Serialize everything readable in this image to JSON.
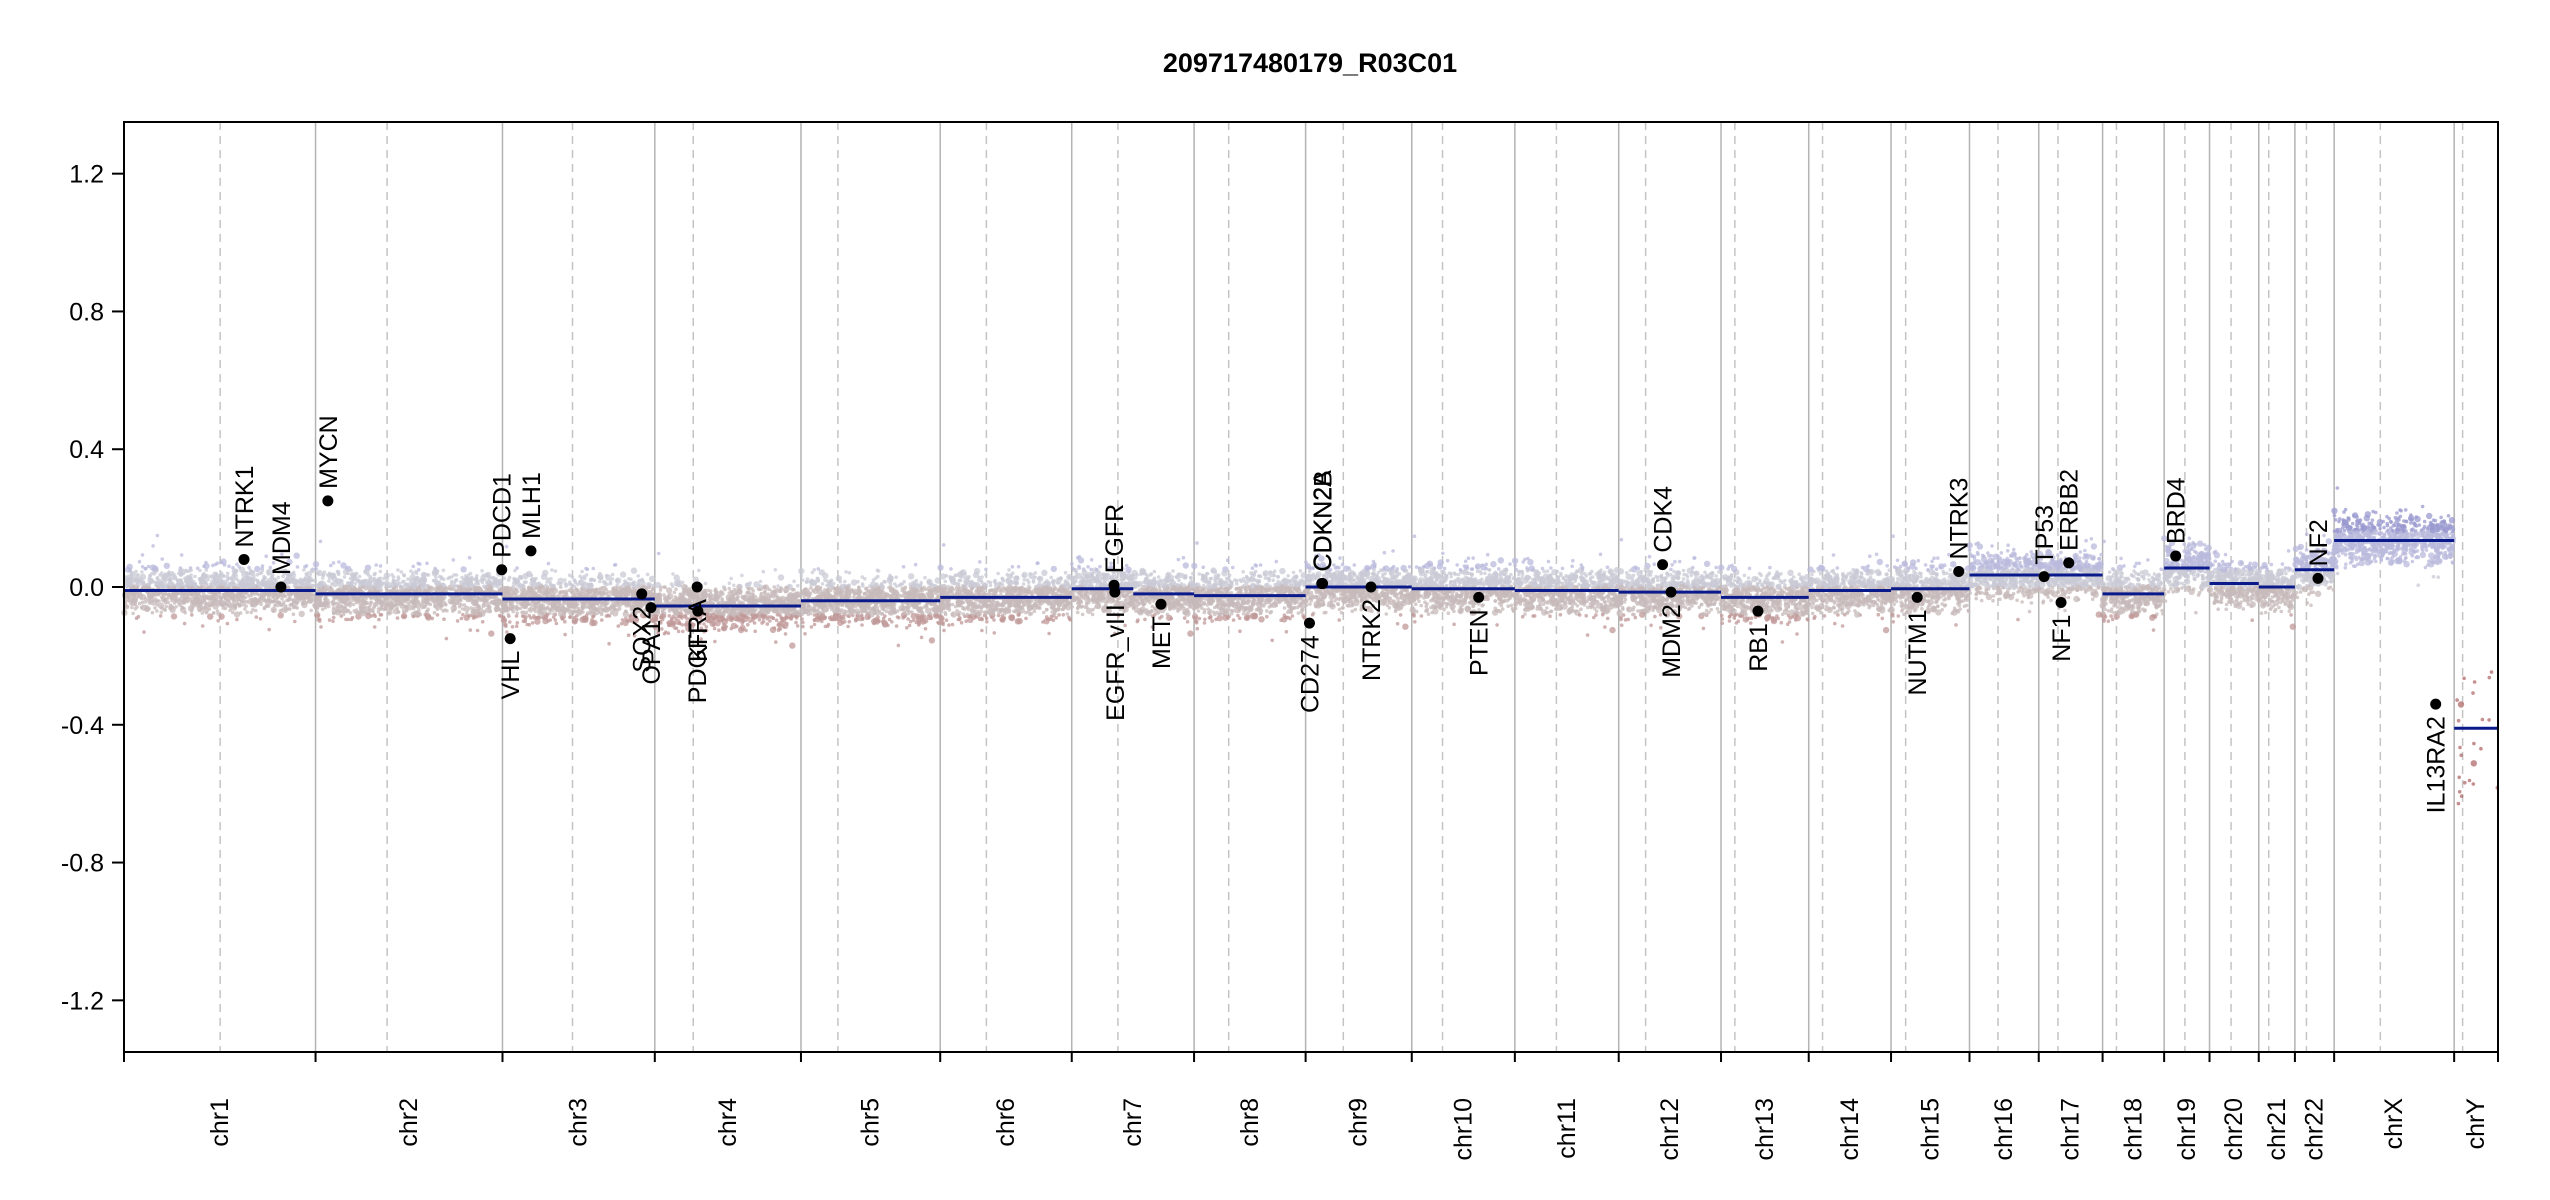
{
  "chart_data": {
    "type": "scatter",
    "title": "209717480179_R03C01",
    "xlabel": "",
    "ylabel": "",
    "ylim": [
      -1.35,
      1.35
    ],
    "y_ticks": [
      "1.2",
      "0.8",
      "0.4",
      "0.0",
      "-0.4",
      "-0.8",
      "-1.2"
    ],
    "y_tick_values": [
      1.2,
      0.8,
      0.4,
      0.0,
      -0.4,
      -0.8,
      -1.2
    ],
    "grid": "vertical chromosome boundaries and dashed centromere lines",
    "genome_units": "Mb (cumulative)",
    "chromosomes": [
      {
        "name": "chr1",
        "size": 249,
        "cen": 125
      },
      {
        "name": "chr2",
        "size": 243,
        "cen": 93
      },
      {
        "name": "chr3",
        "size": 198,
        "cen": 91
      },
      {
        "name": "chr4",
        "size": 190,
        "cen": 50
      },
      {
        "name": "chr5",
        "size": 181,
        "cen": 48
      },
      {
        "name": "chr6",
        "size": 171,
        "cen": 60
      },
      {
        "name": "chr7",
        "size": 159,
        "cen": 60
      },
      {
        "name": "chr8",
        "size": 145,
        "cen": 45
      },
      {
        "name": "chr9",
        "size": 138,
        "cen": 49
      },
      {
        "name": "chr10",
        "size": 134,
        "cen": 40
      },
      {
        "name": "chr11",
        "size": 135,
        "cen": 54
      },
      {
        "name": "chr12",
        "size": 133,
        "cen": 35
      },
      {
        "name": "chr13",
        "size": 114,
        "cen": 18
      },
      {
        "name": "chr14",
        "size": 107,
        "cen": 18
      },
      {
        "name": "chr15",
        "size": 102,
        "cen": 19
      },
      {
        "name": "chr16",
        "size": 90,
        "cen": 37
      },
      {
        "name": "chr17",
        "size": 83,
        "cen": 25
      },
      {
        "name": "chr18",
        "size": 80,
        "cen": 18
      },
      {
        "name": "chr19",
        "size": 59,
        "cen": 27
      },
      {
        "name": "chr20",
        "size": 64,
        "cen": 28
      },
      {
        "name": "chr21",
        "size": 47,
        "cen": 13
      },
      {
        "name": "chr22",
        "size": 51,
        "cen": 15
      },
      {
        "name": "chrX",
        "size": 156,
        "cen": 60
      },
      {
        "name": "chrY",
        "size": 57,
        "cen": 11
      }
    ],
    "segments": [
      {
        "chr": "chr1",
        "start": 0,
        "end": 249,
        "value": -0.01
      },
      {
        "chr": "chr2",
        "start": 0,
        "end": 243,
        "value": -0.02
      },
      {
        "chr": "chr3",
        "start": 0,
        "end": 198,
        "value": -0.035
      },
      {
        "chr": "chr4",
        "start": 0,
        "end": 190,
        "value": -0.055
      },
      {
        "chr": "chr5",
        "start": 0,
        "end": 181,
        "value": -0.04
      },
      {
        "chr": "chr6",
        "start": 0,
        "end": 171,
        "value": -0.03
      },
      {
        "chr": "chr7",
        "start": 0,
        "end": 80,
        "value": -0.005
      },
      {
        "chr": "chr7",
        "start": 80,
        "end": 159,
        "value": -0.02
      },
      {
        "chr": "chr8",
        "start": 0,
        "end": 145,
        "value": -0.025
      },
      {
        "chr": "chr9",
        "start": 0,
        "end": 138,
        "value": 0.0
      },
      {
        "chr": "chr10",
        "start": 0,
        "end": 134,
        "value": -0.005
      },
      {
        "chr": "chr11",
        "start": 0,
        "end": 135,
        "value": -0.01
      },
      {
        "chr": "chr12",
        "start": 0,
        "end": 133,
        "value": -0.015
      },
      {
        "chr": "chr13",
        "start": 0,
        "end": 114,
        "value": -0.03
      },
      {
        "chr": "chr14",
        "start": 0,
        "end": 107,
        "value": -0.01
      },
      {
        "chr": "chr15",
        "start": 0,
        "end": 102,
        "value": -0.005
      },
      {
        "chr": "chr16",
        "start": 0,
        "end": 90,
        "value": 0.035
      },
      {
        "chr": "chr17",
        "start": 0,
        "end": 83,
        "value": 0.035
      },
      {
        "chr": "chr18",
        "start": 0,
        "end": 80,
        "value": -0.02
      },
      {
        "chr": "chr19",
        "start": 0,
        "end": 59,
        "value": 0.055
      },
      {
        "chr": "chr20",
        "start": 0,
        "end": 64,
        "value": 0.01
      },
      {
        "chr": "chr21",
        "start": 0,
        "end": 47,
        "value": 0.0
      },
      {
        "chr": "chr22",
        "start": 0,
        "end": 51,
        "value": 0.05
      },
      {
        "chr": "chrX",
        "start": 0,
        "end": 156,
        "value": 0.135
      },
      {
        "chr": "chrY",
        "start": 0,
        "end": 57,
        "value": -0.41
      }
    ],
    "genes": [
      {
        "name": "NTRK1",
        "chr": "chr1",
        "pos": 156,
        "value": 0.08,
        "side": "above"
      },
      {
        "name": "MDM4",
        "chr": "chr1",
        "pos": 204,
        "value": 0.0,
        "side": "above"
      },
      {
        "name": "MYCN",
        "chr": "chr2",
        "pos": 16,
        "value": 0.25,
        "side": "above"
      },
      {
        "name": "PDCD1",
        "chr": "chr2",
        "pos": 242,
        "value": 0.05,
        "side": "above"
      },
      {
        "name": "VHL",
        "chr": "chr3",
        "pos": 10,
        "value": -0.15,
        "side": "below"
      },
      {
        "name": "MLH1",
        "chr": "chr3",
        "pos": 37,
        "value": 0.105,
        "side": "above"
      },
      {
        "name": "SOX2",
        "chr": "chr3",
        "pos": 181,
        "value": -0.02,
        "side": "below"
      },
      {
        "name": "OPA1",
        "chr": "chr3",
        "pos": 193,
        "value": -0.06,
        "side": "below"
      },
      {
        "name": "PDGFRA",
        "chr": "chr4",
        "pos": 55,
        "value": 0.0,
        "side": "below"
      },
      {
        "name": "KIT",
        "chr": "chr4",
        "pos": 56,
        "value": -0.07,
        "side": "below"
      },
      {
        "name": "EGFR",
        "chr": "chr7",
        "pos": 55,
        "value": 0.005,
        "side": "above"
      },
      {
        "name": "EGFR_vIII",
        "chr": "chr7",
        "pos": 56,
        "value": -0.015,
        "side": "below"
      },
      {
        "name": "MET",
        "chr": "chr7",
        "pos": 116,
        "value": -0.05,
        "side": "below"
      },
      {
        "name": "CD274",
        "chr": "chr9",
        "pos": 5,
        "value": -0.105,
        "side": "below"
      },
      {
        "name": "CDKN2A",
        "chr": "chr9",
        "pos": 21,
        "value": 0.01,
        "side": "above"
      },
      {
        "name": "CDKN2B",
        "chr": "chr9",
        "pos": 22,
        "value": 0.01,
        "side": "above"
      },
      {
        "name": "NTRK2",
        "chr": "chr9",
        "pos": 85,
        "value": 0.0,
        "side": "below"
      },
      {
        "name": "PTEN",
        "chr": "chr10",
        "pos": 87,
        "value": -0.03,
        "side": "below"
      },
      {
        "name": "CDK4",
        "chr": "chr12",
        "pos": 57,
        "value": 0.065,
        "side": "above"
      },
      {
        "name": "MDM2",
        "chr": "chr12",
        "pos": 68,
        "value": -0.015,
        "side": "below"
      },
      {
        "name": "RB1",
        "chr": "chr13",
        "pos": 48,
        "value": -0.07,
        "side": "below"
      },
      {
        "name": "NUTM1",
        "chr": "chr15",
        "pos": 34,
        "value": -0.03,
        "side": "below"
      },
      {
        "name": "NTRK3",
        "chr": "chr15",
        "pos": 88,
        "value": 0.045,
        "side": "above"
      },
      {
        "name": "TP53",
        "chr": "chr17",
        "pos": 7,
        "value": 0.03,
        "side": "above"
      },
      {
        "name": "NF1",
        "chr": "chr17",
        "pos": 29,
        "value": -0.045,
        "side": "below"
      },
      {
        "name": "ERBB2",
        "chr": "chr17",
        "pos": 39,
        "value": 0.07,
        "side": "above"
      },
      {
        "name": "BRD4",
        "chr": "chr19",
        "pos": 15,
        "value": 0.09,
        "side": "above"
      },
      {
        "name": "NF2",
        "chr": "chr22",
        "pos": 30,
        "value": 0.025,
        "side": "above"
      },
      {
        "name": "IL13RA2",
        "chr": "chrX",
        "pos": 132,
        "value": -0.34,
        "side": "below"
      }
    ]
  }
}
